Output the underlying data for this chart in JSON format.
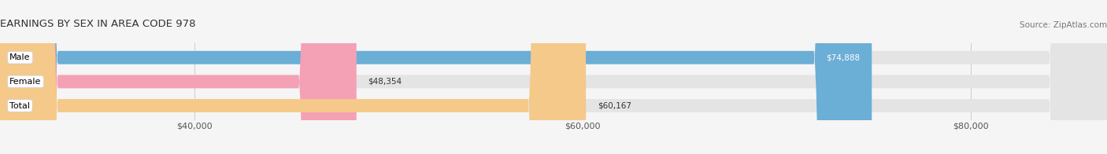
{
  "title": "EARNINGS BY SEX IN AREA CODE 978",
  "source": "Source: ZipAtlas.com",
  "categories": [
    "Male",
    "Female",
    "Total"
  ],
  "values": [
    74888,
    48354,
    60167
  ],
  "bar_colors": [
    "#6baed6",
    "#f4a0b5",
    "#f4c98a"
  ],
  "label_inside": [
    true,
    false,
    false
  ],
  "x_min": 30000,
  "x_max": 87000,
  "tick_values": [
    40000,
    60000,
    80000
  ],
  "tick_labels": [
    "$40,000",
    "$60,000",
    "$80,000"
  ],
  "bar_height": 0.55,
  "figsize": [
    14.06,
    1.96
  ],
  "dpi": 100,
  "bg_color": "#f5f5f5",
  "bar_bg_color": "#e4e4e4",
  "title_fontsize": 9.5,
  "source_fontsize": 7.5,
  "tick_fontsize": 8,
  "bar_label_fontsize": 7.5,
  "category_fontsize": 8
}
